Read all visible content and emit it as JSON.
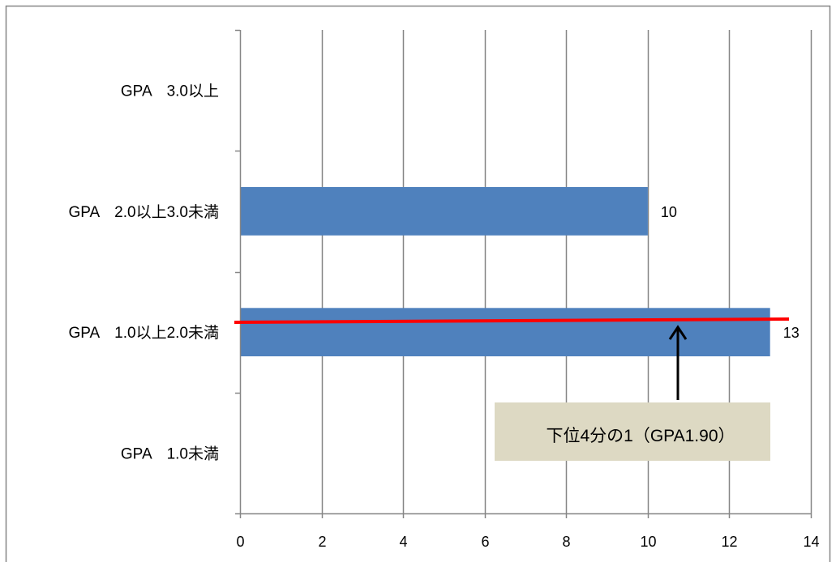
{
  "chart_data": {
    "type": "bar",
    "orientation": "horizontal",
    "categories": [
      "GPA　3.0以上",
      "GPA　2.0以上3.0未満",
      "GPA　1.0以上2.0未満",
      "GPA　1.0未満"
    ],
    "values": [
      null,
      10,
      13,
      null
    ],
    "xlim": [
      0,
      14
    ],
    "x_ticks": [
      0,
      2,
      4,
      6,
      8,
      10,
      12,
      14
    ],
    "grid": true,
    "show_data_labels": true,
    "bar_color": "#4F81BD",
    "annotation": {
      "text": "下位4分の1（GPA1.90）",
      "box_color": "#DDD9C3",
      "line_color": "#FF0000",
      "arrow_color": "#000000"
    }
  },
  "colors": {
    "grid": "#868686",
    "frame": "#868686",
    "text": "#000000"
  }
}
